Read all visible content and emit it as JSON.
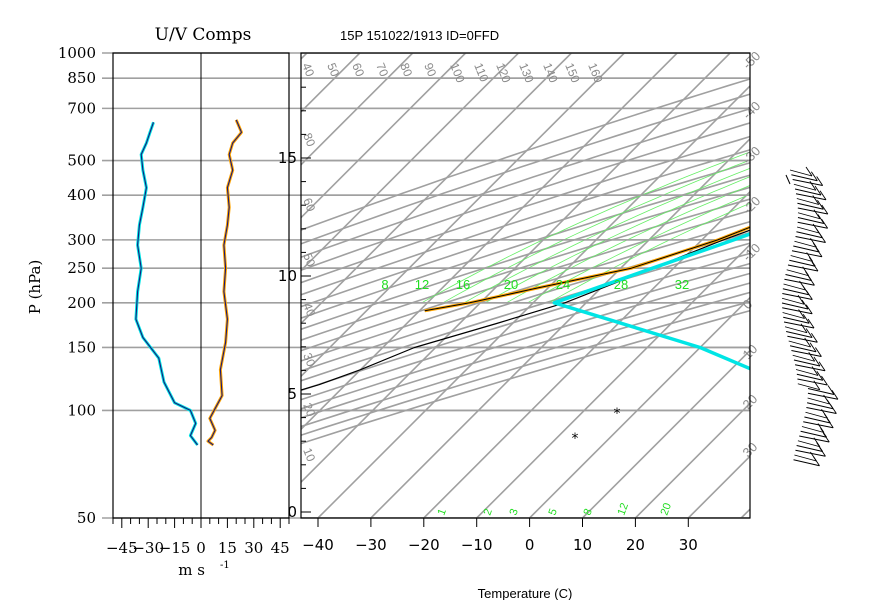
{
  "header": {
    "uv_title": "U/V Comps",
    "skewt_title": "15P 151022/1913 ID=0FFD"
  },
  "chart_data": [
    {
      "type": "line",
      "title": "U/V Comps",
      "xlabel": "m s",
      "xlabel_exponent": "-1",
      "ylabel": "P (hPa)",
      "y_scale": "log",
      "ylim": [
        1000,
        50
      ],
      "xlim": [
        -50,
        50
      ],
      "x_ticks": [
        -45,
        -30,
        -15,
        0,
        15,
        30,
        45
      ],
      "y_ticks": [
        50,
        100,
        150,
        200,
        250,
        300,
        400,
        500,
        700,
        850,
        1000
      ],
      "grid": true,
      "series": [
        {
          "color": "#00e5e5",
          "points": [
            [
              -27,
              640
            ],
            [
              -29,
              600
            ],
            [
              -31,
              560
            ],
            [
              -34,
              520
            ],
            [
              -33,
              470
            ],
            [
              -31,
              420
            ],
            [
              -33,
              370
            ],
            [
              -35,
              330
            ],
            [
              -36,
              290
            ],
            [
              -34,
              250
            ],
            [
              -36,
              215
            ],
            [
              -37,
              180
            ],
            [
              -33,
              160
            ],
            [
              -24,
              140
            ],
            [
              -21,
              120
            ],
            [
              -15,
              105
            ],
            [
              -6,
              100
            ],
            [
              -3,
              92
            ],
            [
              -6,
              85
            ],
            [
              -2,
              80
            ]
          ]
        },
        {
          "color": "#1a1a7a",
          "points": [
            [
              -27,
              640
            ],
            [
              -29,
              600
            ],
            [
              -31,
              560
            ],
            [
              -34,
              520
            ],
            [
              -33,
              470
            ],
            [
              -31,
              420
            ],
            [
              -33,
              370
            ],
            [
              -35,
              330
            ],
            [
              -36,
              290
            ],
            [
              -34,
              250
            ],
            [
              -36,
              215
            ],
            [
              -37,
              180
            ],
            [
              -33,
              160
            ],
            [
              -24,
              140
            ],
            [
              -21,
              120
            ],
            [
              -15,
              105
            ],
            [
              -6,
              100
            ],
            [
              -3,
              92
            ],
            [
              -6,
              85
            ],
            [
              -2,
              80
            ]
          ]
        },
        {
          "color": "#ffa500",
          "points": [
            [
              20,
              650
            ],
            [
              23,
              600
            ],
            [
              18,
              560
            ],
            [
              16,
              520
            ],
            [
              18,
              470
            ],
            [
              15,
              420
            ],
            [
              16,
              370
            ],
            [
              15,
              330
            ],
            [
              13,
              290
            ],
            [
              14,
              250
            ],
            [
              13,
              215
            ],
            [
              15,
              180
            ],
            [
              14,
              155
            ],
            [
              11,
              130
            ],
            [
              12,
              110
            ],
            [
              5,
              95
            ],
            [
              8,
              88
            ],
            [
              6,
              84
            ],
            [
              4,
              82
            ],
            [
              7,
              80
            ]
          ]
        },
        {
          "color": "#1a1a7a",
          "points": [
            [
              20,
              650
            ],
            [
              23,
              600
            ],
            [
              18,
              560
            ],
            [
              16,
              520
            ],
            [
              18,
              470
            ],
            [
              15,
              420
            ],
            [
              16,
              370
            ],
            [
              15,
              330
            ],
            [
              13,
              290
            ],
            [
              14,
              250
            ],
            [
              13,
              215
            ],
            [
              15,
              180
            ],
            [
              14,
              155
            ],
            [
              11,
              130
            ],
            [
              12,
              110
            ],
            [
              5,
              95
            ],
            [
              8,
              88
            ],
            [
              6,
              84
            ],
            [
              4,
              82
            ],
            [
              7,
              80
            ]
          ]
        }
      ]
    },
    {
      "type": "line",
      "title": "15P 151022/1913 ID=0FFD",
      "xlabel": "Temperature (C)",
      "x_ticks": [
        -40,
        -30,
        -20,
        -10,
        0,
        10,
        20,
        30
      ],
      "height_ticks": [
        0,
        5,
        10,
        15
      ],
      "skew_isotherm_labels": [
        "-50",
        "-40",
        "-30",
        "-20",
        "-10",
        "0",
        "10",
        "20",
        "30"
      ],
      "dry_adiabat_labels": [
        "40",
        "50",
        "60",
        "70",
        "80",
        "90",
        "100",
        "110",
        "120",
        "130",
        "140",
        "150",
        "160"
      ],
      "left_theta_labels": [
        "90",
        "80",
        "60",
        "50",
        "40",
        "30",
        "20",
        "10"
      ],
      "mixing_ratio_labels": [
        "8",
        "12",
        "16",
        "20",
        "24",
        "28",
        "32"
      ],
      "moist_adiabat_labels": [
        "1",
        "2",
        "3",
        "5",
        "8",
        "12",
        "20"
      ],
      "series": [
        {
          "name": "Temperature",
          "color": "#000000",
          "points": [
            [
              25,
              1000
            ],
            [
              24,
              950
            ],
            [
              22,
              900
            ],
            [
              21,
              850
            ],
            [
              21,
              800
            ],
            [
              20,
              750
            ],
            [
              20,
              700
            ],
            [
              19,
              650
            ],
            [
              16,
              600
            ],
            [
              12,
              550
            ],
            [
              8,
              500
            ],
            [
              4,
              450
            ],
            [
              -2,
              400
            ],
            [
              -8,
              350
            ],
            [
              -16,
              300
            ],
            [
              -24,
              250
            ],
            [
              -34,
              200
            ],
            [
              -43,
              175
            ],
            [
              -54,
              150
            ],
            [
              -60,
              130
            ],
            [
              -65,
              118
            ],
            [
              -70,
              110
            ],
            [
              -73,
              100
            ],
            [
              -77,
              90
            ],
            [
              -74,
              85
            ],
            [
              -70,
              80
            ],
            [
              -66,
              77
            ]
          ]
        },
        {
          "name": "Parcel",
          "color": "#00e5e5",
          "points": [
            [
              25,
              1000
            ],
            [
              24,
              950
            ],
            [
              23,
              900
            ],
            [
              21,
              850
            ],
            [
              20,
              800
            ],
            [
              19,
              750
            ],
            [
              18,
              700
            ],
            [
              17,
              650
            ],
            [
              15,
              600
            ],
            [
              12,
              550
            ],
            [
              9,
              500
            ],
            [
              5,
              450
            ],
            [
              0,
              400
            ],
            [
              -6,
              350
            ],
            [
              -14,
              300
            ],
            [
              -24,
              250
            ],
            [
              -36,
              200
            ],
            [
              0,
              150
            ],
            [
              40,
              100
            ]
          ]
        },
        {
          "name": "Dewpoint",
          "color": "#ffa500",
          "points": [
            [
              19,
              850
            ],
            [
              18,
              830
            ],
            [
              20,
              800
            ],
            [
              19,
              780
            ],
            [
              20,
              750
            ],
            [
              20,
              700
            ],
            [
              19,
              650
            ],
            [
              15,
              600
            ],
            [
              11,
              550
            ],
            [
              7,
              500
            ],
            [
              2,
              450
            ],
            [
              -3,
              400
            ],
            [
              -10,
              350
            ],
            [
              -17,
              300
            ],
            [
              -28,
              250
            ],
            [
              -42,
              220
            ],
            [
              -52,
              200
            ],
            [
              -59,
              190
            ]
          ]
        }
      ]
    }
  ]
}
